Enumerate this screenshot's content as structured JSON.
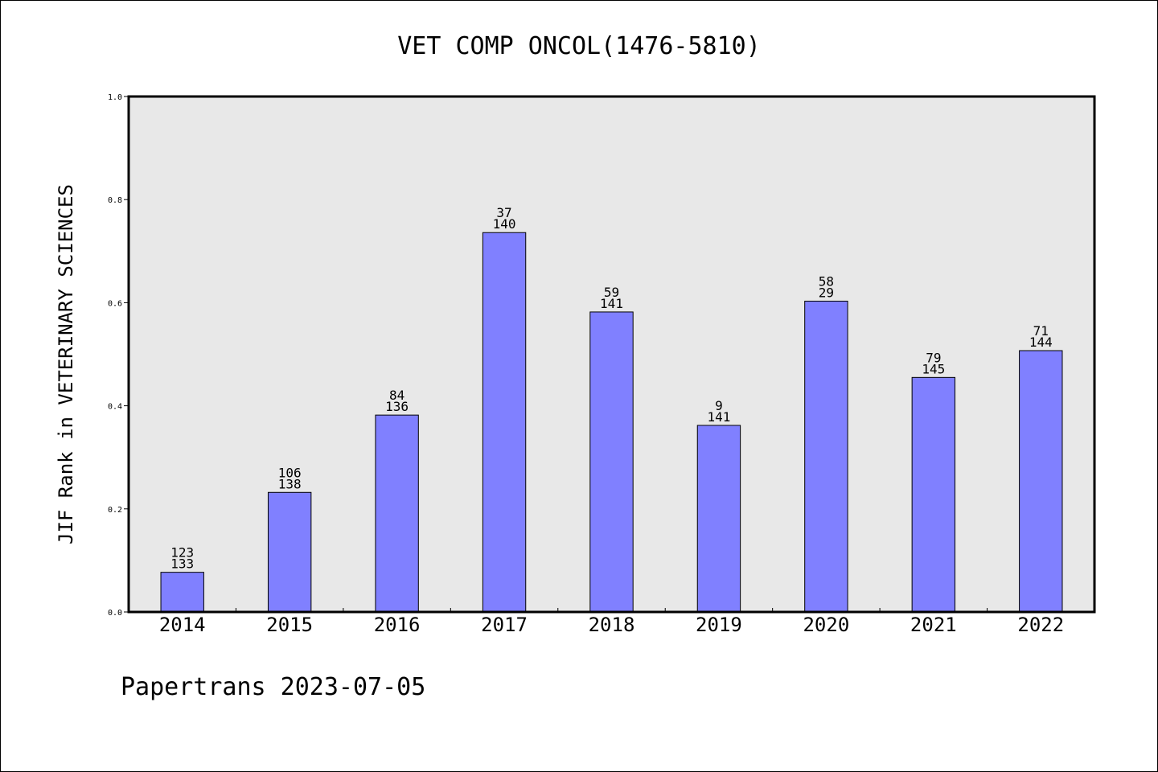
{
  "chart_data": {
    "type": "bar",
    "title": "VET COMP ONCOL(1476-5810)",
    "xlabel": "",
    "ylabel": "JIF Rank in VETERINARY SCIENCES",
    "ylim": [
      0,
      1
    ],
    "yticks": [
      "0.0",
      "0.2",
      "0.4",
      "0.6",
      "0.8",
      "1.0"
    ],
    "categories": [
      "2014",
      "2015",
      "2016",
      "2017",
      "2018",
      "2019",
      "2020",
      "2021",
      "2022"
    ],
    "values": [
      0.077,
      0.232,
      0.382,
      0.736,
      0.582,
      0.362,
      0.603,
      0.455,
      0.507
    ],
    "rank_labels": [
      "123",
      "106",
      "84",
      "37",
      "59",
      "9",
      "58",
      "79",
      "71"
    ],
    "total_labels": [
      "133",
      "138",
      "136",
      "140",
      "141",
      "141",
      "29",
      "145",
      "144"
    ],
    "bar_color": "#8080ff",
    "plot_background": "#e8e8e8"
  },
  "footer": "Papertrans 2023-07-05"
}
